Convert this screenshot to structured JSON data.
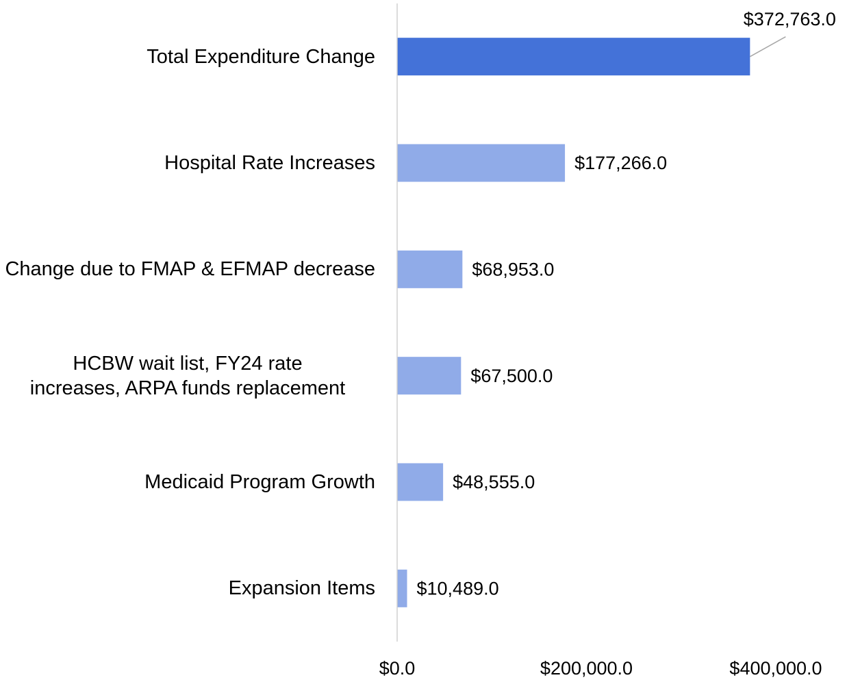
{
  "chart_data": {
    "type": "bar",
    "orientation": "horizontal",
    "categories": [
      "Total Expenditure Change",
      "Hospital Rate Increases",
      "Change due to FMAP & EFMAP decrease",
      "HCBW wait list, FY24 rate increases, ARPA funds replacement",
      "Medicaid Program Growth",
      "Expansion Items"
    ],
    "values": [
      372763,
      177266,
      68953,
      67500,
      48555,
      10489
    ],
    "value_labels": [
      "$372,763.0",
      "$177,266.0",
      "$68,953.0",
      "$67,500.0",
      "$48,555.0",
      "$10,489.0"
    ],
    "colors": [
      "#4472d8",
      "#90abe8",
      "#90abe8",
      "#90abe8",
      "#90abe8",
      "#90abe8"
    ],
    "xlim": [
      0,
      400000
    ],
    "xticks": [
      {
        "value": 0,
        "label": "$0.0"
      },
      {
        "value": 200000,
        "label": "$200,000.0"
      },
      {
        "value": 400000,
        "label": "$400,000.0"
      }
    ],
    "grid": false
  }
}
